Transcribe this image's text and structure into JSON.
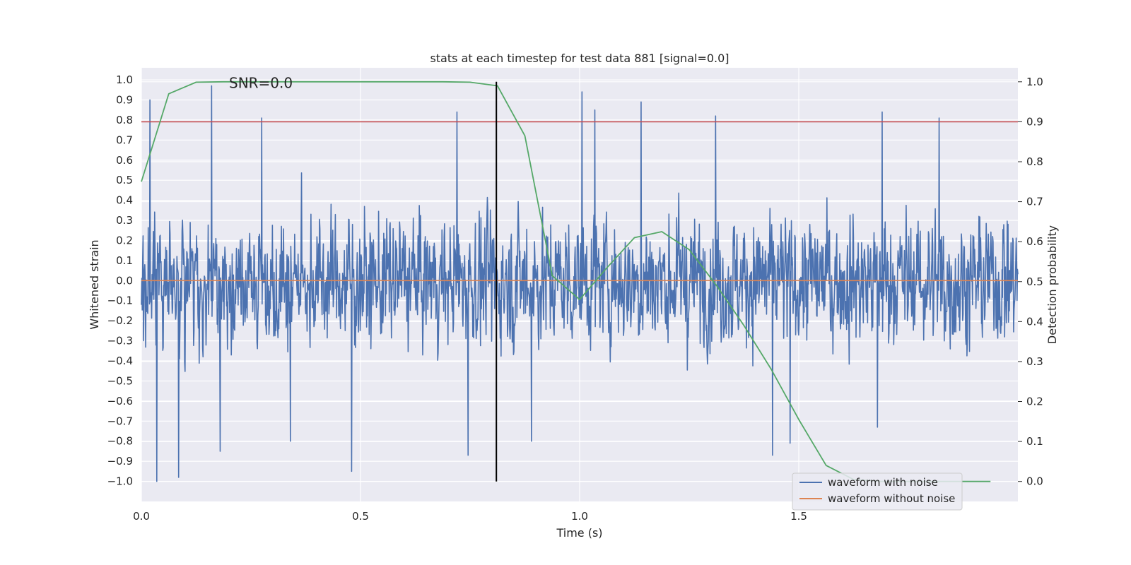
{
  "chart_data": {
    "type": "line",
    "title": "stats at each timestep for test data 881 [signal=0.0]",
    "xlabel": "Time (s)",
    "ylabel_left": "Whitened strain",
    "ylabel_right": "Detection probability",
    "xlim": [
      0.0,
      2.0
    ],
    "ylim_left": [
      -1.1,
      1.06
    ],
    "ylim_right": [
      -0.05,
      1.035
    ],
    "x_ticks": [
      0.0,
      0.5,
      1.0,
      1.5
    ],
    "x_tick_labels": [
      "0.0",
      "0.5",
      "1.0",
      "1.5"
    ],
    "y_left_ticks": [
      1.0,
      0.9,
      0.8,
      0.7,
      0.6,
      0.5,
      0.4,
      0.3,
      0.2,
      0.1,
      0.0,
      -0.1,
      -0.2,
      -0.3,
      -0.4,
      -0.5,
      -0.6,
      -0.7,
      -0.8,
      -0.9,
      -1.0
    ],
    "y_left_tick_labels": [
      "1.0",
      "0.9",
      "0.8",
      "0.7",
      "0.6",
      "0.5",
      "0.4",
      "0.3",
      "0.2",
      "0.1",
      "0.0",
      "−0.1",
      "−0.2",
      "−0.3",
      "−0.4",
      "−0.5",
      "−0.6",
      "−0.7",
      "−0.8",
      "−0.9",
      "−1.0"
    ],
    "y_right_ticks": [
      1.0,
      0.9,
      0.8,
      0.7,
      0.6,
      0.5,
      0.4,
      0.3,
      0.2,
      0.1,
      0.0
    ],
    "y_right_tick_labels": [
      "1.0",
      "0.9",
      "0.8",
      "0.7",
      "0.6",
      "0.5",
      "0.4",
      "0.3",
      "0.2",
      "0.1",
      "0.0"
    ],
    "annotation": "SNR=0.0",
    "annotation_at": [
      0.2,
      0.985
    ],
    "threshold_right": 0.9,
    "vline_x": 0.81,
    "waveform_with_noise": {
      "name": "waveform with noise",
      "color": "#4c72b0",
      "n_samples": 2048,
      "amplitude_range": [
        -1.0,
        0.97
      ],
      "peaks": [
        {
          "x": 0.02,
          "y": 0.9
        },
        {
          "x": 0.035,
          "y": -1.0
        },
        {
          "x": 0.085,
          "y": -0.98
        },
        {
          "x": 0.16,
          "y": 0.97
        },
        {
          "x": 0.18,
          "y": -0.85
        },
        {
          "x": 0.275,
          "y": 0.81
        },
        {
          "x": 0.34,
          "y": -0.8
        },
        {
          "x": 0.48,
          "y": -0.95
        },
        {
          "x": 0.72,
          "y": 0.84
        },
        {
          "x": 0.745,
          "y": -0.87
        },
        {
          "x": 0.89,
          "y": -0.8
        },
        {
          "x": 1.005,
          "y": 0.94
        },
        {
          "x": 1.035,
          "y": 0.85
        },
        {
          "x": 1.14,
          "y": 0.89
        },
        {
          "x": 1.31,
          "y": 0.82
        },
        {
          "x": 1.44,
          "y": -0.87
        },
        {
          "x": 1.48,
          "y": -0.81
        },
        {
          "x": 1.69,
          "y": 0.84
        },
        {
          "x": 1.68,
          "y": -0.73
        },
        {
          "x": 1.82,
          "y": 0.81
        }
      ]
    },
    "waveform_without_noise": {
      "name": "waveform without noise",
      "color": "#dd8452",
      "x": [
        0.0,
        2.0
      ],
      "y": [
        0.0,
        0.0
      ]
    },
    "detection_probability": {
      "name": "detection probability",
      "color": "#55a868",
      "x": [
        0.0,
        0.0625,
        0.125,
        0.1875,
        0.25,
        0.3125,
        0.375,
        0.4375,
        0.5,
        0.5625,
        0.625,
        0.6875,
        0.75,
        0.8125,
        0.875,
        0.9375,
        1.0,
        1.0625,
        1.125,
        1.1875,
        1.25,
        1.3125,
        1.375,
        1.4375,
        1.5,
        1.5625,
        1.625,
        1.6875,
        1.75,
        1.8125,
        1.875,
        1.9375
      ],
      "y": [
        0.75,
        0.97,
        0.999,
        1.0,
        1.0,
        1.0,
        1.0,
        1.0,
        1.0,
        1.0,
        1.0,
        1.0,
        0.999,
        0.99,
        0.865,
        0.515,
        0.455,
        0.535,
        0.61,
        0.625,
        0.58,
        0.49,
        0.39,
        0.28,
        0.155,
        0.04,
        0.005,
        0.0,
        0.0,
        0.0,
        0.0,
        0.0
      ]
    },
    "legend": {
      "placement": "lower-right",
      "entries": [
        {
          "label": "waveform with noise",
          "color": "#4c72b0"
        },
        {
          "label": "waveform without noise",
          "color": "#dd8452"
        }
      ]
    },
    "colors": {
      "background": "#eaeaf2",
      "grid": "#ffffff",
      "threshold": "#c44e52",
      "vline": "#000000"
    }
  }
}
